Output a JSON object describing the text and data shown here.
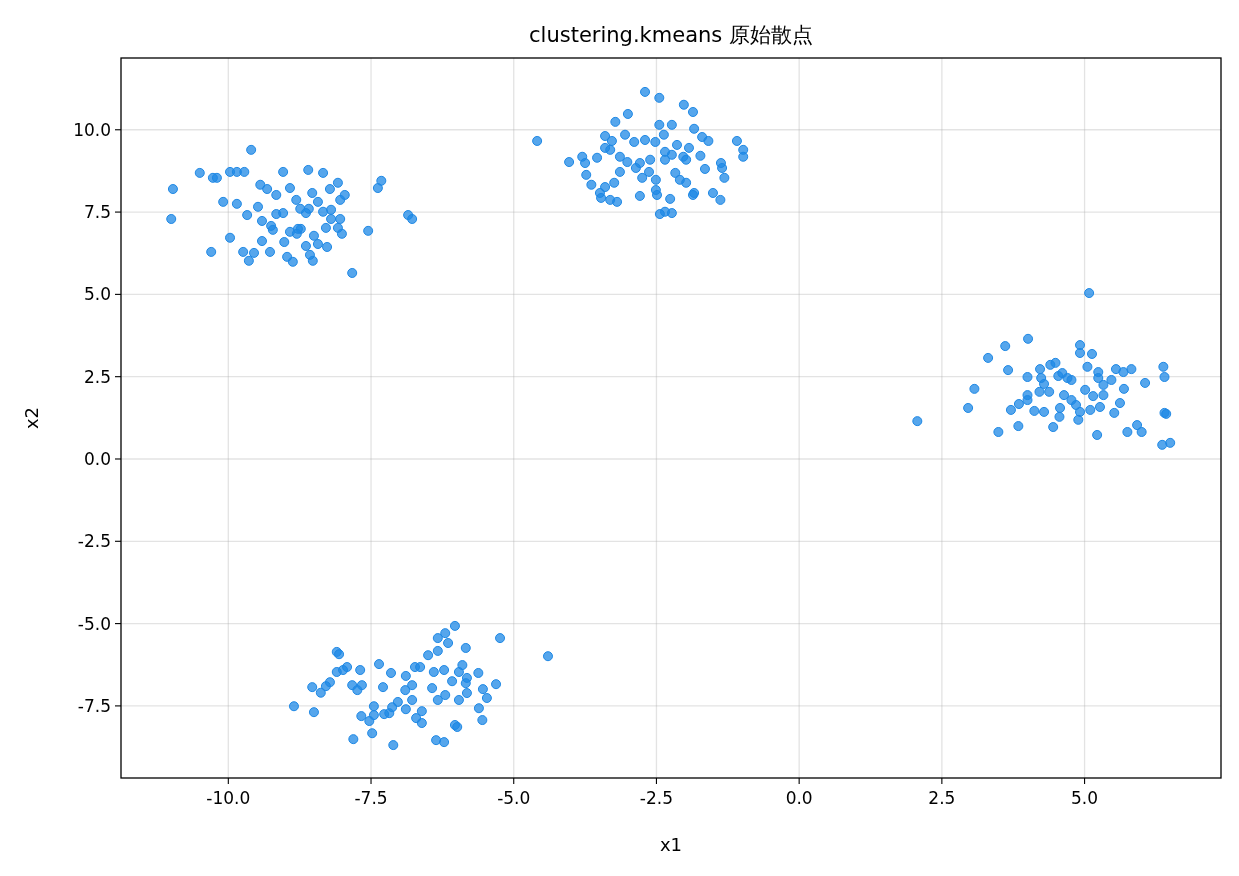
{
  "chart_data": {
    "type": "scatter",
    "title": "clustering.kmeans 原始散点",
    "xlabel": "x1",
    "ylabel": "x2",
    "xlim": [
      -11.88,
      7.39
    ],
    "ylim": [
      -9.69,
      12.18
    ],
    "xticks": [
      {
        "value": -10,
        "label": "-10.0"
      },
      -7.5,
      {
        "value": -5,
        "label": "-5.0"
      },
      -2.5,
      {
        "value": 0,
        "label": "0.0"
      },
      2.5,
      {
        "value": 5,
        "label": "5.0"
      }
    ],
    "yticks": [
      -7.5,
      {
        "value": -5,
        "label": "-5.0"
      },
      -2.5,
      {
        "value": 0,
        "label": "0.0"
      },
      2.5,
      {
        "value": 5,
        "label": "5.0"
      },
      7.5,
      {
        "value": 10,
        "label": "10.0"
      }
    ],
    "grid": true,
    "marker": "circle",
    "series": [
      {
        "color": "#1e88e5",
        "x": [
          -10.97,
          -11.0,
          -10.5,
          -10.27,
          -10.2,
          -9.97,
          -9.72,
          -9.6,
          -9.85,
          -10.09,
          -9.97,
          -9.64,
          -9.55,
          -9.41,
          -9.22,
          -9.32,
          -9.04,
          -8.6,
          -8.34,
          -8.08,
          -8.53,
          -8.74,
          -8.43,
          -8.2,
          -7.55,
          -7.32,
          -7.38,
          -7.83,
          -6.85,
          -6.78,
          -8.27,
          -8.52,
          -8.87,
          -8.97,
          -9.27,
          -9.74,
          -9.85,
          -9.48,
          -9.16,
          -8.92,
          -8.81,
          -9.04,
          -8.59,
          -8.2,
          -9.25,
          -8.73,
          -8.43,
          -8.64,
          -8.8,
          -9.16,
          -9.41,
          -9.02,
          -9.44,
          -8.22,
          -7.96,
          -8.04,
          -8.34,
          -8.78,
          -8.5,
          -9.67,
          -8.04,
          -8.08,
          -8.01,
          -8.64,
          -8.29,
          -8.57,
          -8.92,
          -10.3,
          -2.7,
          -2.45,
          -2.02,
          -1.86,
          -3.22,
          -3.0,
          -4.59,
          -2.45,
          -2.23,
          -3.4,
          -3.28,
          -3.05,
          -2.89,
          -2.7,
          -2.52,
          -2.37,
          -1.84,
          -1.7,
          -1.59,
          -1.09,
          -0.98,
          -0.98,
          -4.03,
          -3.8,
          -3.75,
          -3.54,
          -3.73,
          -3.64,
          -3.49,
          -3.4,
          -3.31,
          -3.19,
          -3.47,
          -2.79,
          -2.49,
          -2.51,
          -2.26,
          -2.23,
          -2.35,
          -2.44,
          -1.98,
          -1.84,
          -1.86,
          -1.51,
          -1.31,
          -1.35,
          -1.38,
          -1.93,
          -1.65,
          -1.37,
          -2.79,
          -2.61,
          -3.01,
          -2.86,
          -2.35,
          -2.23,
          -2.03,
          -3.31,
          -3.4,
          -3.14,
          -3.14,
          -2.63,
          -2.51,
          -2.09,
          -1.73,
          -2.17,
          -2.14,
          -2.35,
          -2.75,
          -1.98,
          -3.24,
          2.07,
          2.96,
          3.07,
          3.31,
          3.61,
          4.01,
          3.66,
          4.0,
          4.22,
          3.71,
          3.85,
          4.12,
          4.29,
          4.45,
          4.54,
          4.61,
          4.92,
          4.92,
          5.05,
          5.08,
          5.13,
          5.24,
          5.33,
          5.55,
          5.68,
          5.82,
          6.06,
          6.38,
          6.4,
          6.4,
          6.43,
          6.5,
          6.36,
          5.92,
          6.0,
          5.75,
          5.22,
          3.84,
          3.49,
          4.77,
          4.38,
          4.56,
          4.77,
          4.85,
          5.15,
          5.27,
          5.52,
          5.62,
          5.69,
          5.33,
          5.1,
          4.92,
          4.89,
          4.64,
          4.29,
          4.21,
          4.0,
          4.0,
          5.47,
          5.24,
          4.7,
          5.01,
          4.4,
          4.49,
          4.24,
          4.57,
          -8.85,
          -8.5,
          -8.22,
          -8.1,
          -8.1,
          -8.06,
          -7.99,
          -7.92,
          -7.83,
          -7.66,
          -7.69,
          -7.36,
          -7.15,
          -7.29,
          -7.45,
          -7.18,
          -7.45,
          -7.67,
          -7.53,
          -7.13,
          -7.03,
          -6.89,
          -7.27,
          -6.9,
          -6.78,
          -6.73,
          -6.64,
          -6.33,
          -6.33,
          -6.2,
          -6.03,
          -6.15,
          -6.5,
          -6.4,
          -6.22,
          -6.08,
          -5.82,
          -5.62,
          -5.96,
          -5.84,
          -5.82,
          -5.96,
          -6.2,
          -6.33,
          -6.61,
          -6.71,
          -6.78,
          -6.89,
          -6.43,
          -6.03,
          -6.36,
          -5.99,
          -5.61,
          -5.55,
          -5.31,
          -5.54,
          -5.47,
          -5.24,
          -4.4,
          -7.11,
          -7.81,
          -7.48,
          -6.22,
          -6.61,
          -5.84,
          -5.9,
          -8.53,
          -8.38,
          -8.29,
          -7.74
        ],
        "values": [
          8.2,
          7.29,
          8.69,
          8.54,
          8.54,
          8.72,
          8.72,
          9.39,
          8.72,
          7.81,
          6.72,
          6.02,
          6.26,
          6.62,
          6.96,
          8.2,
          8.72,
          8.78,
          8.69,
          8.39,
          8.08,
          7.6,
          7.81,
          7.29,
          6.93,
          8.45,
          8.23,
          5.65,
          7.41,
          7.29,
          6.44,
          6.02,
          5.99,
          6.14,
          6.29,
          6.29,
          7.75,
          7.66,
          8.02,
          8.23,
          7.87,
          7.47,
          7.6,
          7.57,
          7.08,
          6.99,
          6.53,
          6.47,
          6.84,
          7.44,
          7.23,
          6.59,
          8.33,
          8.2,
          8.02,
          7.87,
          7.51,
          6.99,
          6.78,
          7.41,
          7.29,
          7.02,
          6.84,
          7.47,
          7.02,
          6.2,
          6.9,
          6.29,
          11.15,
          10.97,
          10.76,
          10.54,
          10.24,
          10.48,
          9.66,
          10.15,
          10.15,
          9.81,
          9.66,
          9.85,
          9.63,
          9.69,
          9.63,
          9.85,
          10.03,
          9.78,
          9.66,
          9.66,
          9.39,
          9.18,
          9.02,
          9.18,
          8.99,
          9.15,
          8.63,
          8.33,
          8.08,
          8.26,
          7.87,
          7.81,
          7.93,
          7.99,
          8.02,
          8.17,
          7.9,
          7.47,
          7.51,
          7.44,
          8.39,
          8.08,
          8.02,
          8.08,
          8.54,
          8.84,
          7.87,
          9.45,
          8.81,
          8.99,
          8.99,
          9.09,
          9.02,
          8.84,
          9.09,
          9.24,
          9.18,
          9.39,
          9.45,
          9.18,
          8.72,
          8.72,
          8.48,
          8.48,
          9.21,
          8.69,
          9.54,
          9.33,
          8.54,
          9.09,
          8.39,
          1.15,
          1.55,
          2.13,
          3.07,
          3.43,
          3.65,
          2.7,
          2.49,
          2.73,
          1.49,
          1.67,
          1.46,
          1.43,
          0.97,
          2.52,
          2.61,
          3.46,
          3.22,
          2.8,
          5.04,
          3.19,
          2.46,
          2.25,
          2.73,
          2.64,
          2.73,
          2.31,
          2.8,
          2.49,
          1.4,
          1.37,
          0.49,
          0.43,
          1.03,
          0.82,
          0.82,
          0.73,
          1.0,
          0.82,
          1.79,
          2.04,
          1.28,
          2.4,
          1.64,
          1.91,
          1.58,
          1.4,
          1.7,
          2.13,
          1.94,
          1.49,
          1.43,
          1.19,
          1.94,
          2.28,
          2.04,
          1.94,
          1.79,
          2.4,
          2.64,
          2.46,
          2.1,
          2.86,
          2.92,
          2.46,
          1.55,
          -7.51,
          -7.69,
          -6.78,
          -6.47,
          -5.86,
          -5.93,
          -6.41,
          -6.32,
          -6.87,
          -6.87,
          -6.41,
          -6.23,
          -6.5,
          -6.93,
          -7.51,
          -7.72,
          -7.78,
          -7.81,
          -7.96,
          -7.54,
          -7.38,
          -7.6,
          -7.75,
          -7.02,
          -6.87,
          -6.32,
          -6.32,
          -5.83,
          -5.44,
          -5.29,
          -5.07,
          -5.59,
          -5.96,
          -6.47,
          -6.41,
          -6.75,
          -6.65,
          -6.5,
          -6.47,
          -6.81,
          -7.11,
          -7.32,
          -7.17,
          -7.32,
          -7.66,
          -7.87,
          -7.32,
          -6.59,
          -6.96,
          -8.08,
          -8.54,
          -8.14,
          -7.57,
          -7.93,
          -6.84,
          -6.99,
          -7.26,
          -5.44,
          -5.99,
          -8.69,
          -8.51,
          -8.33,
          -8.6,
          -8.02,
          -5.74,
          -6.26,
          -6.93,
          -7.1,
          -6.9,
          -7.02
        ]
      }
    ]
  }
}
